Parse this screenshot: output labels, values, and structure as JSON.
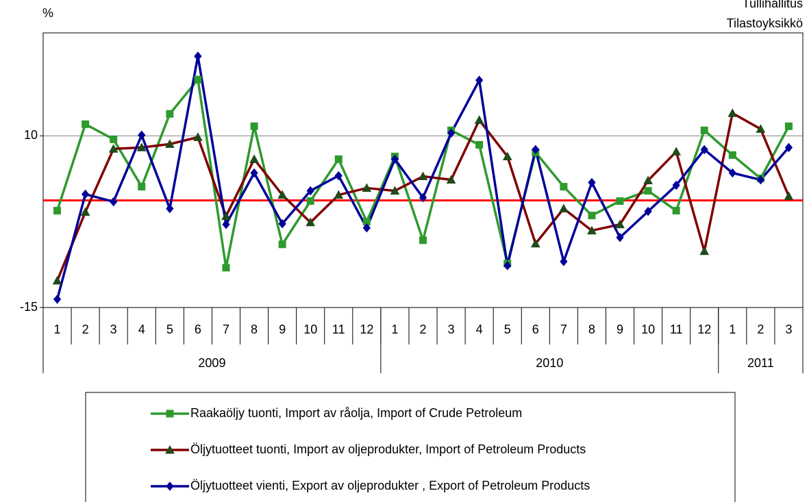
{
  "chart_data": {
    "type": "line",
    "y_label": "%",
    "source": [
      "Tullihallitus",
      "Tilastoyksikkö"
    ],
    "categories": [
      "1",
      "2",
      "3",
      "4",
      "5",
      "6",
      "7",
      "8",
      "9",
      "10",
      "11",
      "12",
      "1",
      "2",
      "3",
      "4",
      "5",
      "6",
      "7",
      "8",
      "9",
      "10",
      "11",
      "12",
      "1",
      "2",
      "3"
    ],
    "groups": [
      {
        "label": "2009",
        "count": 12
      },
      {
        "label": "2010",
        "count": 12
      },
      {
        "label": "2011",
        "count": 3
      }
    ],
    "ylim": [
      -15,
      25
    ],
    "yticks": [
      -15,
      10
    ],
    "grid": true,
    "reference_line": {
      "value": 0.6,
      "color": "#ff0000"
    },
    "series": [
      {
        "name": "Raakaöljy tuonti, Import av råolja, Import of Crude Petroleum",
        "color": "#2e9a2e",
        "marker": "square",
        "marker_color": "#2e9a2e",
        "values": [
          -0.9,
          11.7,
          9.5,
          2.6,
          13.2,
          18.2,
          -9.2,
          11.4,
          -5.8,
          0.5,
          6.6,
          -2.5,
          7.0,
          -5.2,
          10.8,
          8.7,
          -8.6,
          7.6,
          2.6,
          -1.6,
          0.5,
          2.0,
          -0.9,
          10.8,
          7.2,
          3.8,
          11.4
        ]
      },
      {
        "name": "Öljytuotteet tuonti, Import av oljeprodukter, Import of Petroleum Products",
        "color": "#800000",
        "marker": "triangle",
        "marker_color": "#1f4a1a",
        "values": [
          -11.1,
          -1.1,
          8.1,
          8.3,
          8.8,
          9.8,
          -1.7,
          6.6,
          1.4,
          -2.6,
          1.4,
          2.4,
          2.0,
          4.1,
          3.6,
          12.3,
          7.0,
          -5.7,
          -0.6,
          -3.8,
          -2.9,
          3.5,
          7.7,
          -6.8,
          13.3,
          11.0,
          1.2
        ]
      },
      {
        "name": "Öljytuotteet vienti, Export av oljeprodukter , Export of Petroleum Products",
        "color": "#000099",
        "marker": "diamond",
        "marker_color": "#000099",
        "values": [
          -13.8,
          1.5,
          0.4,
          10.1,
          -0.6,
          21.6,
          -2.9,
          4.6,
          -2.8,
          2.0,
          4.2,
          -3.4,
          6.6,
          1.0,
          10.4,
          18.1,
          -8.9,
          8.0,
          -8.3,
          3.2,
          -4.8,
          -1.0,
          2.8,
          8.0,
          4.6,
          3.6,
          8.3
        ]
      }
    ]
  }
}
